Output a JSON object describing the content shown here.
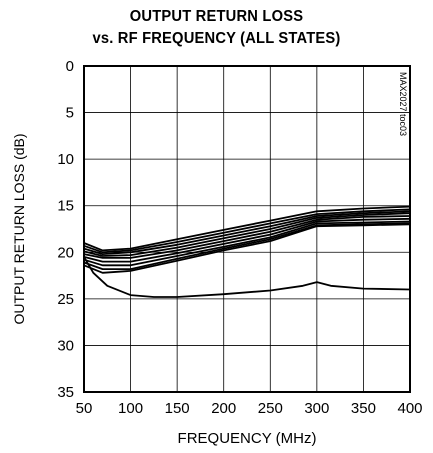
{
  "chart_data": {
    "type": "line",
    "title_lines": [
      "OUTPUT RETURN LOSS",
      "vs. RF FREQUENCY (ALL STATES)"
    ],
    "xlabel": "FREQUENCY (MHz)",
    "ylabel": "OUTPUT RETURN LOSS (dB)",
    "watermark": "MAX2027 toc03",
    "xlim": [
      50,
      400
    ],
    "ylim": [
      0,
      35
    ],
    "y_inverted": true,
    "x_ticks": [
      50,
      100,
      150,
      200,
      250,
      300,
      350,
      400
    ],
    "y_ticks": [
      0,
      5,
      10,
      15,
      20,
      25,
      30,
      35
    ],
    "grid": true,
    "series": [
      {
        "x": [
          50,
          70,
          100,
          150,
          200,
          250,
          300,
          350,
          400
        ],
        "values": [
          19.0,
          19.8,
          19.6,
          18.6,
          17.6,
          16.6,
          15.6,
          15.3,
          15.1
        ]
      },
      {
        "x": [
          50,
          70,
          100,
          150,
          200,
          250,
          300,
          350,
          400
        ],
        "values": [
          19.3,
          20.0,
          19.8,
          18.9,
          17.9,
          16.9,
          15.9,
          15.6,
          15.4
        ]
      },
      {
        "x": [
          50,
          70,
          100,
          150,
          200,
          250,
          300,
          350,
          400
        ],
        "values": [
          19.6,
          20.2,
          20.0,
          19.2,
          18.2,
          17.2,
          16.1,
          15.8,
          15.6
        ]
      },
      {
        "x": [
          50,
          70,
          100,
          150,
          200,
          250,
          300,
          350,
          400
        ],
        "values": [
          19.9,
          20.4,
          20.3,
          19.5,
          18.5,
          17.5,
          16.3,
          16.0,
          15.8
        ]
      },
      {
        "x": [
          50,
          70,
          100,
          150,
          200,
          250,
          300,
          350,
          400
        ],
        "values": [
          20.2,
          20.6,
          20.6,
          19.8,
          18.8,
          17.8,
          16.5,
          16.2,
          16.1
        ]
      },
      {
        "x": [
          50,
          70,
          100,
          150,
          200,
          250,
          300,
          350,
          400
        ],
        "values": [
          20.5,
          21.0,
          21.0,
          20.1,
          19.1,
          18.1,
          16.7,
          16.5,
          16.4
        ]
      },
      {
        "x": [
          50,
          70,
          100,
          150,
          200,
          250,
          300,
          350,
          400
        ],
        "values": [
          20.8,
          21.4,
          21.4,
          20.4,
          19.4,
          18.4,
          16.9,
          16.8,
          16.7
        ]
      },
      {
        "x": [
          50,
          70,
          100,
          150,
          200,
          250,
          300,
          350,
          400
        ],
        "values": [
          21.1,
          21.8,
          21.8,
          20.7,
          19.6,
          18.6,
          17.1,
          17.0,
          16.9
        ]
      },
      {
        "x": [
          50,
          70,
          100,
          150,
          200,
          250,
          300,
          350,
          400
        ],
        "values": [
          21.4,
          22.2,
          22.0,
          20.9,
          19.8,
          18.8,
          17.2,
          17.1,
          17.0
        ]
      },
      {
        "x": [
          50,
          60,
          75,
          100,
          125,
          150,
          200,
          250,
          285,
          300,
          315,
          350,
          400
        ],
        "values": [
          20.5,
          22.2,
          23.6,
          24.6,
          24.8,
          24.8,
          24.5,
          24.1,
          23.6,
          23.2,
          23.6,
          23.9,
          24.0
        ]
      }
    ]
  }
}
